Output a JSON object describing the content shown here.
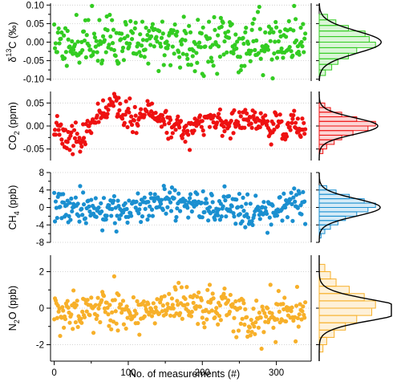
{
  "x_axis": {
    "label": "No. of measurements (#)",
    "range": [
      -5,
      347
    ],
    "ticks": [
      0,
      100,
      200,
      300
    ]
  },
  "chart_data": [
    {
      "type": "scatter",
      "id": "d13c",
      "ylabel_parts": [
        "δ",
        "13",
        "C (‰)"
      ],
      "ylim": [
        -0.105,
        0.105
      ],
      "yticks": [
        "0.10",
        "0.05",
        "0.00",
        "-0.05",
        "-0.10"
      ],
      "ytick_values": [
        0.1,
        0.05,
        0.0,
        -0.05,
        -0.1
      ],
      "grid": "dotted horizontal",
      "color": "#33cc22",
      "n": 340,
      "mean": 0.0,
      "sd": 0.037,
      "walk": 0.0,
      "seed": 11,
      "histogram": {
        "orientation": "horizontal",
        "bin_edges": [
          -0.09,
          -0.075,
          -0.06,
          -0.045,
          -0.03,
          -0.015,
          0.0,
          0.015,
          0.03,
          0.045,
          0.06,
          0.075
        ],
        "counts": [
          3,
          6,
          9,
          14,
          18,
          27,
          24,
          22,
          14,
          8,
          4
        ],
        "gaussian": {
          "mean": 0.0,
          "sd": 0.03
        }
      }
    },
    {
      "type": "scatter",
      "id": "co2",
      "ylabel_parts": [
        "CO",
        "2",
        " (ppm)"
      ],
      "ylim": [
        -0.075,
        0.075
      ],
      "yticks": [
        "0.05",
        "0.00",
        "-0.05"
      ],
      "ytick_values": [
        0.05,
        0.0,
        -0.05
      ],
      "grid": "dotted horizontal",
      "color": "#ee1111",
      "n": 340,
      "mean": 0.0,
      "sd": 0.018,
      "walk": 0.55,
      "seed": 23,
      "histogram": {
        "orientation": "horizontal",
        "bin_edges": [
          -0.06,
          -0.05,
          -0.04,
          -0.03,
          -0.02,
          -0.01,
          0.0,
          0.01,
          0.02,
          0.03,
          0.04,
          0.05
        ],
        "counts": [
          2,
          4,
          8,
          12,
          18,
          26,
          30,
          20,
          12,
          6,
          3
        ],
        "gaussian": {
          "mean": 0.0,
          "sd": 0.018
        }
      }
    },
    {
      "type": "scatter",
      "id": "ch4",
      "ylabel_parts": [
        "CH",
        "4",
        " (ppb)"
      ],
      "ylim": [
        -8,
        8
      ],
      "yticks": [
        "8",
        "4",
        "0",
        "-4",
        "-8"
      ],
      "ytick_values": [
        8,
        4,
        0,
        -4,
        -8
      ],
      "grid": "dotted horizontal",
      "color": "#1a8fd0",
      "n": 340,
      "mean": 0.0,
      "sd": 2.1,
      "walk": 0.2,
      "seed": 37,
      "histogram": {
        "orientation": "horizontal",
        "bin_edges": [
          -7,
          -6,
          -5,
          -4,
          -3,
          -2,
          -1,
          0,
          1,
          2,
          3,
          4,
          5
        ],
        "counts": [
          1,
          3,
          6,
          10,
          14,
          20,
          26,
          30,
          24,
          16,
          9,
          4
        ],
        "gaussian": {
          "mean": 0.0,
          "sd": 2.0
        }
      }
    },
    {
      "type": "scatter",
      "id": "n2o",
      "ylabel_parts": [
        "N",
        "2",
        "O (ppb)"
      ],
      "ylim": [
        -2.9,
        2.9
      ],
      "yticks": [
        "2",
        "0",
        "-2"
      ],
      "ytick_values": [
        2,
        0,
        -2
      ],
      "grid": "dotted horizontal",
      "color": "#f7b02a",
      "n": 340,
      "mean": 0.05,
      "sd": 0.68,
      "walk": 0.35,
      "seed": 53,
      "histogram": {
        "orientation": "horizontal",
        "bin_edges": [
          -2.4,
          -2.0,
          -1.6,
          -1.2,
          -0.8,
          -0.4,
          0.0,
          0.4,
          0.8,
          1.2,
          1.6,
          2.0,
          2.4
        ],
        "counts": [
          2,
          4,
          8,
          14,
          20,
          28,
          30,
          24,
          16,
          9,
          6,
          3
        ],
        "gaussian": {
          "mean": -0.1,
          "sd": 0.55
        }
      }
    }
  ]
}
